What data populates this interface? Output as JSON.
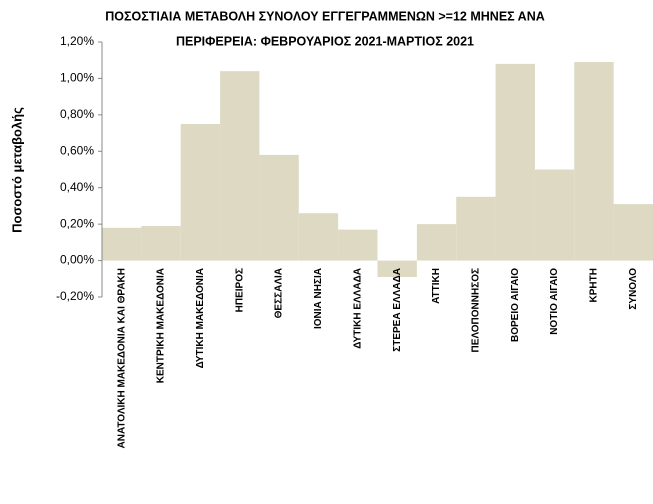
{
  "chart_data": {
    "type": "bar",
    "title": [
      "ΠΟΣΟΣΤΙΑΙΑ ΜΕΤΑΒΟΛΗ  ΣΥΝΟΛΟΥ ΕΓΓΕΓΡΑΜΜΕΝΩΝ >=12 ΜΗΝΕΣ ΑΝΑ",
      "ΠΕΡΙΦΕΡΕΙΑ: ΦΕΒΡΟΥΑΡΙΟΣ 2021-ΜΑΡΤΙΟΣ 2021"
    ],
    "y_label": "Ποσοστό μεταβολής",
    "categories": [
      "ΑΝΑΤΟΛΙΚΗ ΜΑΚΕΔΟΝΙΑ ΚΑΙ ΘΡΑΚΗ",
      "ΚΕΝΤΡΙΚΗ ΜΑΚΕΔΟΝΙΑ",
      "ΔΥΤΙΚΗ ΜΑΚΕΔΟΝΙΑ",
      "ΗΠΕΙΡΟΣ",
      "ΘΕΣΣΑΛΙΑ",
      "ΙΟΝΙΑ ΝΗΣΙΑ",
      "ΔΥΤΙΚΗ ΕΛΛΑΔΑ",
      "ΣΤΕΡΕΑ ΕΛΛΑΔΑ",
      "ΑΤΤΙΚΗ",
      "ΠΕΛΟΠΟΝΝΗΣΟΣ",
      "ΒΟΡΕΙΟ ΑΙΓΑΙΟ",
      "ΝΟΤΙΟ ΑΙΓΑΙΟ",
      "ΚΡΗΤΗ",
      "ΣΥΝΟΛΟ"
    ],
    "values": [
      0.18,
      0.19,
      0.75,
      1.04,
      0.58,
      0.26,
      0.17,
      -0.09,
      0.2,
      0.35,
      1.08,
      0.5,
      1.09,
      0.31
    ],
    "color": "#ddd9c3",
    "ylim": [
      -0.2,
      1.2
    ],
    "yticks": [
      {
        "value": -0.2,
        "label": "-0,20%"
      },
      {
        "value": 0,
        "label": "0,00%"
      },
      {
        "value": 0.2,
        "label": "0,20%"
      },
      {
        "value": 0.4,
        "label": "0,40%"
      },
      {
        "value": 0.6,
        "label": "0,60%"
      },
      {
        "value": 0.8,
        "label": "0,80%"
      },
      {
        "value": 1.0,
        "label": "1,00%"
      },
      {
        "value": 1.2,
        "label": "1,20%"
      }
    ],
    "grid": false
  }
}
